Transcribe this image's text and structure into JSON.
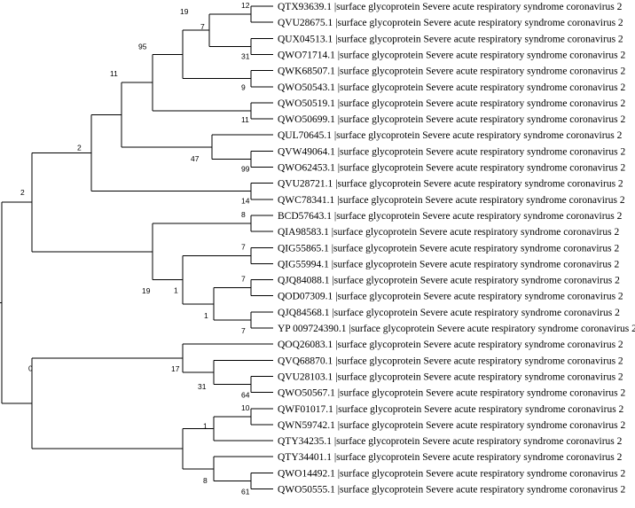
{
  "tree": {
    "leaves": [
      "QTX93639.1 |surface glycoprotein Severe acute respiratory syndrome coronavirus 2",
      "QVU28675.1 |surface glycoprotein Severe acute respiratory syndrome coronavirus 2",
      "QUX04513.1 |surface glycoprotein Severe acute respiratory syndrome coronavirus 2",
      "QWO71714.1 |surface glycoprotein Severe acute respiratory syndrome coronavirus 2",
      "QWK68507.1 |surface glycoprotein Severe acute respiratory syndrome coronavirus 2",
      "QWO50543.1 |surface glycoprotein Severe acute respiratory syndrome coronavirus 2",
      "QWO50519.1 |surface glycoprotein Severe acute respiratory syndrome coronavirus 2",
      "QWO50699.1 |surface glycoprotein Severe acute respiratory syndrome coronavirus 2",
      "QUL70645.1 |surface glycoprotein Severe acute respiratory syndrome coronavirus 2",
      "QVW49064.1 |surface glycoprotein Severe acute respiratory syndrome coronavirus 2",
      "QWO62453.1 |surface glycoprotein Severe acute respiratory syndrome coronavirus 2",
      "QVU28721.1 |surface glycoprotein Severe acute respiratory syndrome coronavirus 2",
      "QWC78341.1 |surface glycoprotein Severe acute respiratory syndrome coronavirus 2",
      "BCD57643.1 |surface glycoprotein Severe acute respiratory syndrome coronavirus 2",
      "QIA98583.1 |surface glycoprotein Severe acute respiratory syndrome coronavirus 2",
      "QIG55865.1 |surface glycoprotein Severe acute respiratory syndrome coronavirus 2",
      "QIG55994.1 |surface glycoprotein Severe acute respiratory syndrome coronavirus 2",
      "QJQ84088.1 |surface glycoprotein Severe acute respiratory syndrome coronavirus 2",
      "QOD07309.1 |surface glycoprotein Severe acute respiratory syndrome coronavirus 2",
      "QJQ84568.1 |surface glycoprotein Severe acute respiratory syndrome coronavirus 2",
      "YP 009724390.1 |surface glycoprotein Severe acute respiratory syndrome coronavirus 2",
      "QOQ26083.1 |surface glycoprotein Severe acute respiratory syndrome coronavirus 2",
      "QVQ68870.1 |surface glycoprotein Severe acute respiratory syndrome coronavirus 2",
      "QVU28103.1 |surface glycoprotein Severe acute respiratory syndrome coronavirus 2",
      "QWO50567.1 |surface glycoprotein Severe acute respiratory syndrome coronavirus 2",
      "QWF01017.1 |surface glycoprotein Severe acute respiratory syndrome coronavirus 2",
      "QWN59742.1 |surface glycoprotein Severe acute respiratory syndrome coronavirus 2",
      "QTY34235.1 |surface glycoprotein Severe acute respiratory syndrome coronavirus 2",
      "QTY34401.1 |surface glycoprotein Severe acute respiratory syndrome coronavirus 2",
      "QWO14492.1 |surface glycoprotein Severe acute respiratory syndrome coronavirus 2",
      "QWO50555.1 |surface glycoprotein Severe acute respiratory syndrome coronavirus 2"
    ],
    "bootstrap": [
      "12",
      "7",
      "19",
      "31",
      "95",
      "9",
      "11",
      "11",
      "47",
      "99",
      "2",
      "14",
      "2",
      "8",
      "19",
      "7",
      "1",
      "7",
      "1",
      "7",
      "17",
      "31",
      "64",
      "10",
      "1",
      "8",
      "0",
      "61"
    ]
  }
}
